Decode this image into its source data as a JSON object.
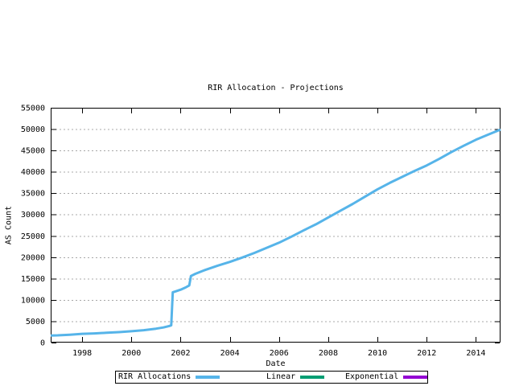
{
  "window": {
    "background": "#ffffff"
  },
  "chart_data": {
    "type": "line",
    "title": "RIR Allocation - Projections",
    "xlabel": "Date",
    "ylabel": "AS Count",
    "xlim": [
      1996.72,
      2015.0
    ],
    "ylim": [
      0,
      55000
    ],
    "xticks": [
      1998,
      2000,
      2002,
      2004,
      2006,
      2008,
      2010,
      2012,
      2014
    ],
    "yticks": [
      0,
      5000,
      10000,
      15000,
      20000,
      25000,
      30000,
      35000,
      40000,
      45000,
      50000,
      55000
    ],
    "grid": "horizontal dashed gridlines at every y tick, mirrored inward tick marks on all four borders",
    "legend_position": "boxed row centered below the x-axis label",
    "axis_color": "#000000",
    "grid_color": "#a8a8a8",
    "background": "#ffffff",
    "series": [
      {
        "name": "RIR Allocations",
        "color": "#56b4e9",
        "line_width": 3,
        "points": [
          [
            1996.72,
            1650
          ],
          [
            1997.0,
            1700
          ],
          [
            1997.5,
            1850
          ],
          [
            1998.0,
            2050
          ],
          [
            1998.5,
            2150
          ],
          [
            1999.0,
            2300
          ],
          [
            1999.5,
            2450
          ],
          [
            2000.0,
            2650
          ],
          [
            2000.5,
            2900
          ],
          [
            2001.0,
            3250
          ],
          [
            2001.3,
            3550
          ],
          [
            2001.55,
            3900
          ],
          [
            2001.62,
            4050
          ],
          [
            2001.68,
            11800
          ],
          [
            2001.8,
            12000
          ],
          [
            2002.0,
            12400
          ],
          [
            2002.2,
            12900
          ],
          [
            2002.35,
            13400
          ],
          [
            2002.42,
            15600
          ],
          [
            2002.6,
            16100
          ],
          [
            2003.0,
            17000
          ],
          [
            2003.5,
            18000
          ],
          [
            2004.0,
            18900
          ],
          [
            2004.5,
            19900
          ],
          [
            2005.0,
            21000
          ],
          [
            2005.5,
            22200
          ],
          [
            2006.0,
            23400
          ],
          [
            2006.5,
            24800
          ],
          [
            2007.0,
            26300
          ],
          [
            2007.5,
            27700
          ],
          [
            2008.0,
            29300
          ],
          [
            2008.5,
            30900
          ],
          [
            2009.0,
            32500
          ],
          [
            2009.5,
            34200
          ],
          [
            2010.0,
            35900
          ],
          [
            2010.5,
            37400
          ],
          [
            2011.0,
            38800
          ],
          [
            2011.5,
            40200
          ],
          [
            2012.0,
            41500
          ],
          [
            2012.5,
            43000
          ],
          [
            2013.0,
            44600
          ],
          [
            2013.5,
            46100
          ],
          [
            2014.0,
            47500
          ],
          [
            2014.5,
            48700
          ],
          [
            2015.0,
            49900
          ]
        ]
      },
      {
        "name": "Linear",
        "color": "#009e73",
        "line_width": 3,
        "points": []
      },
      {
        "name": "Exponential",
        "color": "#9400d3",
        "line_width": 3,
        "points": []
      }
    ]
  }
}
